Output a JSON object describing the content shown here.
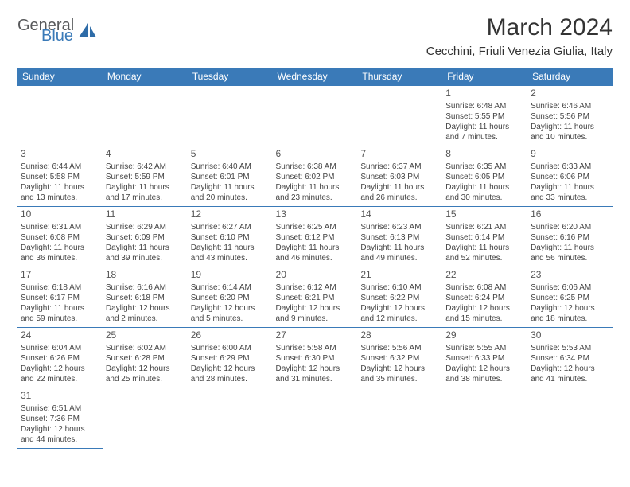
{
  "logo": {
    "general": "General",
    "blue": "Blue"
  },
  "title": "March 2024",
  "location": "Cecchini, Friuli Venezia Giulia, Italy",
  "colors": {
    "header_bg": "#3a7ab8",
    "header_text": "#ffffff",
    "border": "#3a7ab8"
  },
  "weekdays": [
    "Sunday",
    "Monday",
    "Tuesday",
    "Wednesday",
    "Thursday",
    "Friday",
    "Saturday"
  ],
  "grid": [
    [
      null,
      null,
      null,
      null,
      null,
      {
        "d": "1",
        "sr": "6:48 AM",
        "ss": "5:55 PM",
        "dl1": "11 hours",
        "dl2": "and 7 minutes."
      },
      {
        "d": "2",
        "sr": "6:46 AM",
        "ss": "5:56 PM",
        "dl1": "11 hours",
        "dl2": "and 10 minutes."
      }
    ],
    [
      {
        "d": "3",
        "sr": "6:44 AM",
        "ss": "5:58 PM",
        "dl1": "11 hours",
        "dl2": "and 13 minutes."
      },
      {
        "d": "4",
        "sr": "6:42 AM",
        "ss": "5:59 PM",
        "dl1": "11 hours",
        "dl2": "and 17 minutes."
      },
      {
        "d": "5",
        "sr": "6:40 AM",
        "ss": "6:01 PM",
        "dl1": "11 hours",
        "dl2": "and 20 minutes."
      },
      {
        "d": "6",
        "sr": "6:38 AM",
        "ss": "6:02 PM",
        "dl1": "11 hours",
        "dl2": "and 23 minutes."
      },
      {
        "d": "7",
        "sr": "6:37 AM",
        "ss": "6:03 PM",
        "dl1": "11 hours",
        "dl2": "and 26 minutes."
      },
      {
        "d": "8",
        "sr": "6:35 AM",
        "ss": "6:05 PM",
        "dl1": "11 hours",
        "dl2": "and 30 minutes."
      },
      {
        "d": "9",
        "sr": "6:33 AM",
        "ss": "6:06 PM",
        "dl1": "11 hours",
        "dl2": "and 33 minutes."
      }
    ],
    [
      {
        "d": "10",
        "sr": "6:31 AM",
        "ss": "6:08 PM",
        "dl1": "11 hours",
        "dl2": "and 36 minutes."
      },
      {
        "d": "11",
        "sr": "6:29 AM",
        "ss": "6:09 PM",
        "dl1": "11 hours",
        "dl2": "and 39 minutes."
      },
      {
        "d": "12",
        "sr": "6:27 AM",
        "ss": "6:10 PM",
        "dl1": "11 hours",
        "dl2": "and 43 minutes."
      },
      {
        "d": "13",
        "sr": "6:25 AM",
        "ss": "6:12 PM",
        "dl1": "11 hours",
        "dl2": "and 46 minutes."
      },
      {
        "d": "14",
        "sr": "6:23 AM",
        "ss": "6:13 PM",
        "dl1": "11 hours",
        "dl2": "and 49 minutes."
      },
      {
        "d": "15",
        "sr": "6:21 AM",
        "ss": "6:14 PM",
        "dl1": "11 hours",
        "dl2": "and 52 minutes."
      },
      {
        "d": "16",
        "sr": "6:20 AM",
        "ss": "6:16 PM",
        "dl1": "11 hours",
        "dl2": "and 56 minutes."
      }
    ],
    [
      {
        "d": "17",
        "sr": "6:18 AM",
        "ss": "6:17 PM",
        "dl1": "11 hours",
        "dl2": "and 59 minutes."
      },
      {
        "d": "18",
        "sr": "6:16 AM",
        "ss": "6:18 PM",
        "dl1": "12 hours",
        "dl2": "and 2 minutes."
      },
      {
        "d": "19",
        "sr": "6:14 AM",
        "ss": "6:20 PM",
        "dl1": "12 hours",
        "dl2": "and 5 minutes."
      },
      {
        "d": "20",
        "sr": "6:12 AM",
        "ss": "6:21 PM",
        "dl1": "12 hours",
        "dl2": "and 9 minutes."
      },
      {
        "d": "21",
        "sr": "6:10 AM",
        "ss": "6:22 PM",
        "dl1": "12 hours",
        "dl2": "and 12 minutes."
      },
      {
        "d": "22",
        "sr": "6:08 AM",
        "ss": "6:24 PM",
        "dl1": "12 hours",
        "dl2": "and 15 minutes."
      },
      {
        "d": "23",
        "sr": "6:06 AM",
        "ss": "6:25 PM",
        "dl1": "12 hours",
        "dl2": "and 18 minutes."
      }
    ],
    [
      {
        "d": "24",
        "sr": "6:04 AM",
        "ss": "6:26 PM",
        "dl1": "12 hours",
        "dl2": "and 22 minutes."
      },
      {
        "d": "25",
        "sr": "6:02 AM",
        "ss": "6:28 PM",
        "dl1": "12 hours",
        "dl2": "and 25 minutes."
      },
      {
        "d": "26",
        "sr": "6:00 AM",
        "ss": "6:29 PM",
        "dl1": "12 hours",
        "dl2": "and 28 minutes."
      },
      {
        "d": "27",
        "sr": "5:58 AM",
        "ss": "6:30 PM",
        "dl1": "12 hours",
        "dl2": "and 31 minutes."
      },
      {
        "d": "28",
        "sr": "5:56 AM",
        "ss": "6:32 PM",
        "dl1": "12 hours",
        "dl2": "and 35 minutes."
      },
      {
        "d": "29",
        "sr": "5:55 AM",
        "ss": "6:33 PM",
        "dl1": "12 hours",
        "dl2": "and 38 minutes."
      },
      {
        "d": "30",
        "sr": "5:53 AM",
        "ss": "6:34 PM",
        "dl1": "12 hours",
        "dl2": "and 41 minutes."
      }
    ],
    [
      {
        "d": "31",
        "sr": "6:51 AM",
        "ss": "7:36 PM",
        "dl1": "12 hours",
        "dl2": "and 44 minutes."
      },
      null,
      null,
      null,
      null,
      null,
      null
    ]
  ],
  "labels": {
    "sunrise": "Sunrise:",
    "sunset": "Sunset:",
    "daylight": "Daylight:"
  }
}
